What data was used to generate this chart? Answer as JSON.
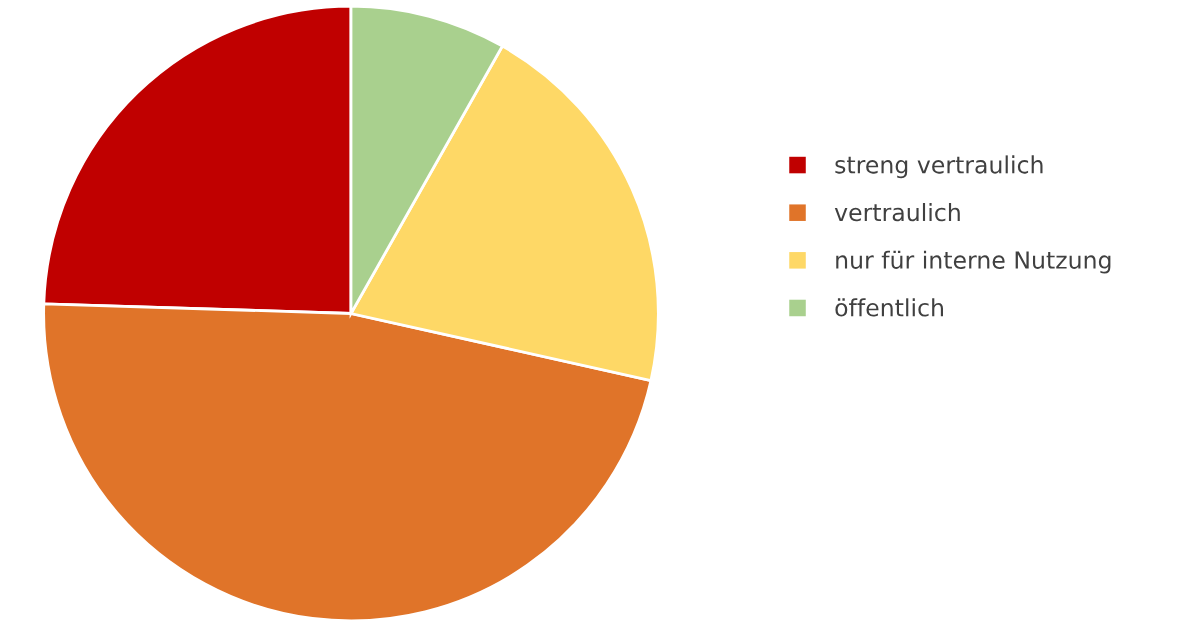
{
  "chart_data": {
    "type": "pie",
    "categories": [
      "streng vertraulich",
      "vertraulich",
      "nur für interne Nutzung",
      "öffentlich"
    ],
    "values": [
      24.5,
      47.0,
      20.3,
      8.2
    ],
    "colors": [
      "#c00000",
      "#e07429",
      "#fed866",
      "#a9d08e"
    ],
    "legend": "right"
  }
}
